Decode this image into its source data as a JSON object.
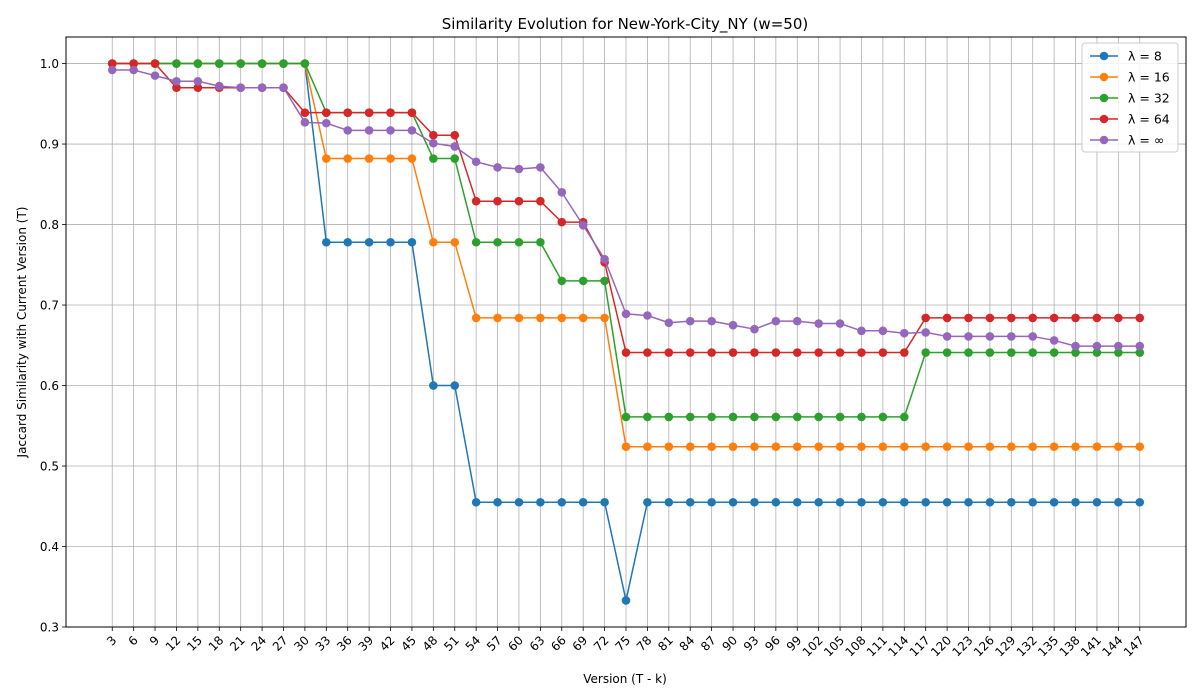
{
  "chart_data": {
    "type": "line",
    "title": "Similarity Evolution for New-York-City_NY (w=50)",
    "xlabel": "Version (T - k)",
    "ylabel": "Jaccard Similarity with Current Version (T)",
    "ylim": [
      0.3,
      1.033
    ],
    "yticks": [
      0.3,
      0.4,
      0.5,
      0.6,
      0.7,
      0.8,
      0.9,
      1.0
    ],
    "ytick_labels": [
      "0.3",
      "0.4",
      "0.5",
      "0.6",
      "0.7",
      "0.8",
      "0.9",
      "1.0"
    ],
    "grid": true,
    "legend_position": "top-right",
    "x": [
      3,
      6,
      9,
      12,
      15,
      18,
      21,
      24,
      27,
      30,
      33,
      36,
      39,
      42,
      45,
      48,
      51,
      54,
      57,
      60,
      63,
      66,
      69,
      72,
      75,
      78,
      81,
      84,
      87,
      90,
      93,
      96,
      99,
      102,
      105,
      108,
      111,
      114,
      117,
      120,
      123,
      126,
      129,
      132,
      135,
      138,
      141,
      144,
      147
    ],
    "series": [
      {
        "name": "λ = 8",
        "color": "#1f77b4",
        "values": [
          1.0,
          1.0,
          1.0,
          1.0,
          1.0,
          1.0,
          1.0,
          1.0,
          1.0,
          1.0,
          0.778,
          0.778,
          0.778,
          0.778,
          0.778,
          0.6,
          0.6,
          0.455,
          0.455,
          0.455,
          0.455,
          0.455,
          0.455,
          0.455,
          0.333,
          0.455,
          0.455,
          0.455,
          0.455,
          0.455,
          0.455,
          0.455,
          0.455,
          0.455,
          0.455,
          0.455,
          0.455,
          0.455,
          0.455,
          0.455,
          0.455,
          0.455,
          0.455,
          0.455,
          0.455,
          0.455,
          0.455,
          0.455,
          0.455
        ]
      },
      {
        "name": "λ = 16",
        "color": "#ff7f0e",
        "values": [
          1.0,
          1.0,
          1.0,
          1.0,
          1.0,
          1.0,
          1.0,
          1.0,
          1.0,
          1.0,
          0.882,
          0.882,
          0.882,
          0.882,
          0.882,
          0.778,
          0.778,
          0.684,
          0.684,
          0.684,
          0.684,
          0.684,
          0.684,
          0.684,
          0.524,
          0.524,
          0.524,
          0.524,
          0.524,
          0.524,
          0.524,
          0.524,
          0.524,
          0.524,
          0.524,
          0.524,
          0.524,
          0.524,
          0.524,
          0.524,
          0.524,
          0.524,
          0.524,
          0.524,
          0.524,
          0.524,
          0.524,
          0.524,
          0.524
        ]
      },
      {
        "name": "λ = 32",
        "color": "#2ca02c",
        "values": [
          1.0,
          1.0,
          1.0,
          1.0,
          1.0,
          1.0,
          1.0,
          1.0,
          1.0,
          1.0,
          0.939,
          0.939,
          0.939,
          0.939,
          0.939,
          0.882,
          0.882,
          0.778,
          0.778,
          0.778,
          0.778,
          0.73,
          0.73,
          0.73,
          0.561,
          0.561,
          0.561,
          0.561,
          0.561,
          0.561,
          0.561,
          0.561,
          0.561,
          0.561,
          0.561,
          0.561,
          0.561,
          0.561,
          0.641,
          0.641,
          0.641,
          0.641,
          0.641,
          0.641,
          0.641,
          0.641,
          0.641,
          0.641,
          0.641
        ]
      },
      {
        "name": "λ = 64",
        "color": "#d62728",
        "values": [
          1.0,
          1.0,
          1.0,
          0.97,
          0.97,
          0.97,
          0.97,
          0.97,
          0.97,
          0.939,
          0.939,
          0.939,
          0.939,
          0.939,
          0.939,
          0.911,
          0.911,
          0.829,
          0.829,
          0.829,
          0.829,
          0.803,
          0.803,
          0.753,
          0.641,
          0.641,
          0.641,
          0.641,
          0.641,
          0.641,
          0.641,
          0.641,
          0.641,
          0.641,
          0.641,
          0.641,
          0.641,
          0.641,
          0.684,
          0.684,
          0.684,
          0.684,
          0.684,
          0.684,
          0.684,
          0.684,
          0.684,
          0.684,
          0.684
        ]
      },
      {
        "name": "λ = ∞",
        "color": "#9467bd",
        "values": [
          0.992,
          0.992,
          0.985,
          0.978,
          0.978,
          0.972,
          0.97,
          0.97,
          0.97,
          0.927,
          0.926,
          0.917,
          0.917,
          0.917,
          0.917,
          0.901,
          0.897,
          0.878,
          0.871,
          0.869,
          0.871,
          0.84,
          0.799,
          0.757,
          0.689,
          0.687,
          0.678,
          0.68,
          0.68,
          0.675,
          0.67,
          0.68,
          0.68,
          0.677,
          0.677,
          0.668,
          0.668,
          0.665,
          0.666,
          0.661,
          0.661,
          0.661,
          0.661,
          0.661,
          0.656,
          0.649,
          0.649,
          0.649,
          0.649
        ]
      }
    ]
  }
}
